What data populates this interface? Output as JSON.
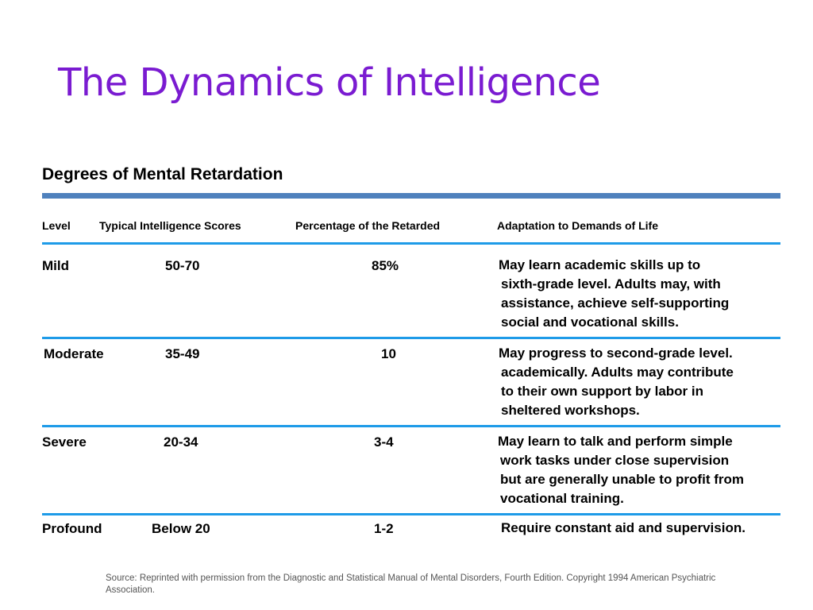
{
  "slide": {
    "title": "The Dynamics of Intelligence"
  },
  "colors": {
    "title": "#7a1bd1",
    "thick_rule": "#4f81bd",
    "thin_rule": "#1e9be8"
  },
  "table": {
    "title": "Degrees of Mental Retardation",
    "headers": {
      "level": "Level",
      "scores": "Typical Intelligence Scores",
      "percentage": "Percentage of the Retarded",
      "adaptation": "Adaptation to Demands of Life"
    },
    "rows": [
      {
        "level": "Mild",
        "scores": "50-70",
        "percentage": "85%",
        "adaptation": [
          "May learn academic skills up to",
          "sixth-grade level. Adults may, with",
          "assistance, achieve self-supporting",
          "social and vocational skills."
        ]
      },
      {
        "level": "Moderate",
        "scores": "35-49",
        "percentage": "10",
        "adaptation": [
          "May progress to second-grade level.",
          "academically. Adults may contribute",
          "to their own support by labor in",
          "sheltered workshops."
        ]
      },
      {
        "level": "Severe",
        "scores": "20-34",
        "percentage": "3-4",
        "adaptation": [
          "May learn to talk and perform simple",
          "work tasks under close supervision",
          "but are generally unable to profit from",
          "vocational training."
        ]
      },
      {
        "level": "Profound",
        "scores": "Below 20",
        "percentage": "1-2",
        "adaptation": [
          "Require constant aid and supervision."
        ]
      }
    ]
  },
  "source": "Source: Reprinted with permission from the Diagnostic and Statistical Manual of Mental Disorders, Fourth Edition. Copyright 1994 American Psychiatric Association."
}
